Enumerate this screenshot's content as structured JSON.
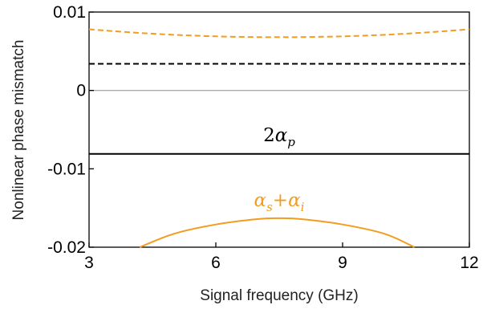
{
  "chart_data": {
    "type": "line",
    "xlabel": "Signal frequency (GHz)",
    "ylabel": "Nonlinear phase mismatch",
    "xlim": [
      3,
      12
    ],
    "ylim": [
      -0.02,
      0.01
    ],
    "x_ticks": [
      3,
      6,
      9,
      12
    ],
    "x_tick_labels": [
      "3",
      "6",
      "9",
      "12"
    ],
    "y_ticks": [
      -0.02,
      -0.01,
      0,
      0.01
    ],
    "y_tick_labels": [
      "-0.02",
      "-0.01",
      "0",
      "0.01"
    ],
    "grid": false,
    "series": [
      {
        "color": "#f39c1f",
        "style": "dashed",
        "x": [
          3,
          4,
          5,
          6,
          7,
          7.5,
          8,
          9,
          10,
          11,
          12
        ],
        "y": [
          0.0078,
          0.0074,
          0.0071,
          0.0069,
          0.0068,
          0.0068,
          0.0068,
          0.0069,
          0.0071,
          0.0074,
          0.0078
        ]
      },
      {
        "color": "#000000",
        "style": "dashed",
        "x": [
          3,
          12
        ],
        "y": [
          0.0034,
          0.0034
        ]
      },
      {
        "color": "#aaaaaa",
        "style": "solid",
        "x": [
          3,
          12
        ],
        "y": [
          0,
          0
        ]
      },
      {
        "color": "#000000",
        "style": "solid",
        "x": [
          3,
          12
        ],
        "y": [
          -0.0081,
          -0.0081
        ]
      },
      {
        "color": "#f39c1f",
        "style": "solid",
        "x": [
          4.2,
          5,
          6,
          7,
          7.5,
          8,
          9,
          10,
          10.7
        ],
        "y": [
          -0.02,
          -0.0183,
          -0.0171,
          -0.0164,
          -0.0163,
          -0.0164,
          -0.0171,
          -0.0183,
          -0.02
        ]
      }
    ],
    "annotations": [
      {
        "text": "2αp",
        "parts": {
          "coef": "2",
          "greek": "α",
          "sub": "p"
        },
        "x": 7.5,
        "y": -0.0065,
        "color": "#000000"
      },
      {
        "text": "αs+αi",
        "parts": {
          "greek1": "α",
          "sub1": "s",
          "op": "+",
          "greek2": "α",
          "sub2": "i"
        },
        "x": 7.5,
        "y": -0.0148,
        "color": "#f39c1f"
      }
    ]
  }
}
